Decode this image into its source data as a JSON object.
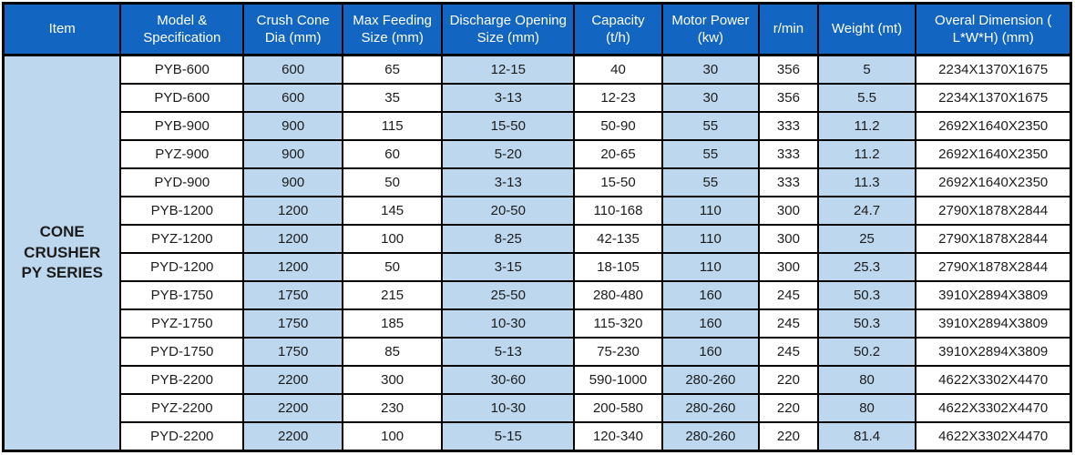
{
  "colors": {
    "header_bg": "#1265c0",
    "header_text": "#ffffff",
    "stripe_bg": "#bdd7ee",
    "cell_bg": "#ffffff",
    "border": "#000000",
    "body_text": "#1c1c1c"
  },
  "table": {
    "headers": [
      "Item",
      "Model & Specification",
      "Crush Cone Dia (mm)",
      "Max Feeding Size (mm)",
      "Discharge Opening Size (mm)",
      "Capacity (t/h)",
      "Motor Power (kw)",
      "r/min",
      "Weight (mt)",
      "Overal Dimension ( L*W*H) (mm)"
    ],
    "column_keys": [
      "model-specification",
      "crush-cone-dia",
      "max-feeding-size",
      "discharge-opening-size",
      "capacity",
      "motor-power",
      "r-min",
      "weight",
      "overall-dimension"
    ],
    "item_label": "CONE CRUSHER PY SERIES",
    "rows": [
      [
        "PYB-600",
        "600",
        "65",
        "12-15",
        "40",
        "30",
        "356",
        "5",
        "2234X1370X1675"
      ],
      [
        "PYD-600",
        "600",
        "35",
        "3-13",
        "12-23",
        "30",
        "356",
        "5.5",
        "2234X1370X1675"
      ],
      [
        "PYB-900",
        "900",
        "115",
        "15-50",
        "50-90",
        "55",
        "333",
        "11.2",
        "2692X1640X2350"
      ],
      [
        "PYZ-900",
        "900",
        "60",
        "5-20",
        "20-65",
        "55",
        "333",
        "11.2",
        "2692X1640X2350"
      ],
      [
        "PYD-900",
        "900",
        "50",
        "3-13",
        "15-50",
        "55",
        "333",
        "11.3",
        "2692X1640X2350"
      ],
      [
        "PYB-1200",
        "1200",
        "145",
        "20-50",
        "110-168",
        "110",
        "300",
        "24.7",
        "2790X1878X2844"
      ],
      [
        "PYZ-1200",
        "1200",
        "100",
        "8-25",
        "42-135",
        "110",
        "300",
        "25",
        "2790X1878X2844"
      ],
      [
        "PYD-1200",
        "1200",
        "50",
        "3-15",
        "18-105",
        "110",
        "300",
        "25.3",
        "2790X1878X2844"
      ],
      [
        "PYB-1750",
        "1750",
        "215",
        "25-50",
        "280-480",
        "160",
        "245",
        "50.3",
        "3910X2894X3809"
      ],
      [
        "PYZ-1750",
        "1750",
        "185",
        "10-30",
        "115-320",
        "160",
        "245",
        "50.3",
        "3910X2894X3809"
      ],
      [
        "PYD-1750",
        "1750",
        "85",
        "5-13",
        "75-230",
        "160",
        "245",
        "50.2",
        "3910X2894X3809"
      ],
      [
        "PYB-2200",
        "2200",
        "300",
        "30-60",
        "590-1000",
        "280-260",
        "220",
        "80",
        "4622X3302X4470"
      ],
      [
        "PYZ-2200",
        "2200",
        "230",
        "10-30",
        "200-580",
        "280-260",
        "220",
        "80",
        "4622X3302X4470"
      ],
      [
        "PYD-2200",
        "2200",
        "100",
        "5-15",
        "120-340",
        "280-260",
        "220",
        "81.4",
        "4622X3302X4470"
      ]
    ]
  }
}
